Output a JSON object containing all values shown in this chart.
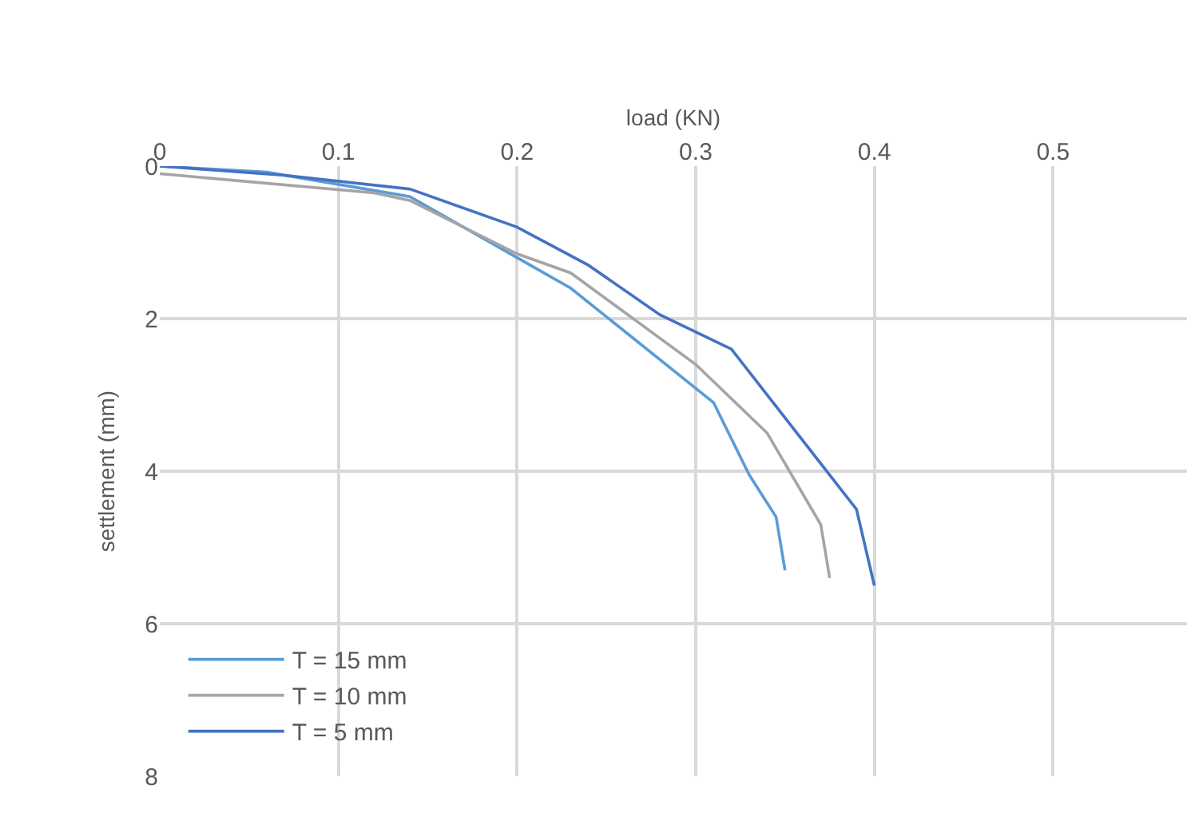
{
  "chart_data": {
    "type": "line",
    "xlabel": "load (KN)",
    "ylabel": "settlement (mm)",
    "xlim": [
      0,
      0.575
    ],
    "xticks": [
      0,
      0.1,
      0.2,
      0.3,
      0.4,
      0.5
    ],
    "ylim": [
      8,
      0
    ],
    "yticks": [
      0,
      2,
      4,
      6,
      8
    ],
    "grid": true,
    "legend": "bottom left",
    "marker": "none",
    "line_style": "solid",
    "series": [
      {
        "name": "T = 15 mm",
        "color": "#5b9bd5",
        "x": [
          0,
          0.06,
          0.14,
          0.2,
          0.23,
          0.31,
          0.33,
          0.345,
          0.35
        ],
        "values": [
          0,
          0.08,
          0.4,
          1.2,
          1.6,
          3.1,
          4.05,
          4.6,
          5.3
        ]
      },
      {
        "name": "T = 10 mm",
        "color": "#a5a5a5",
        "x": [
          0,
          0.12,
          0.14,
          0.2,
          0.23,
          0.3,
          0.34,
          0.37,
          0.375
        ],
        "values": [
          0.1,
          0.35,
          0.45,
          1.15,
          1.4,
          2.6,
          3.5,
          4.7,
          5.4
        ]
      },
      {
        "name": "T = 5 mm",
        "color": "#4472c4",
        "x": [
          0,
          0.07,
          0.14,
          0.2,
          0.24,
          0.28,
          0.32,
          0.39,
          0.4
        ],
        "values": [
          0,
          0.12,
          0.3,
          0.8,
          1.3,
          1.95,
          2.4,
          4.5,
          5.5
        ]
      }
    ]
  }
}
